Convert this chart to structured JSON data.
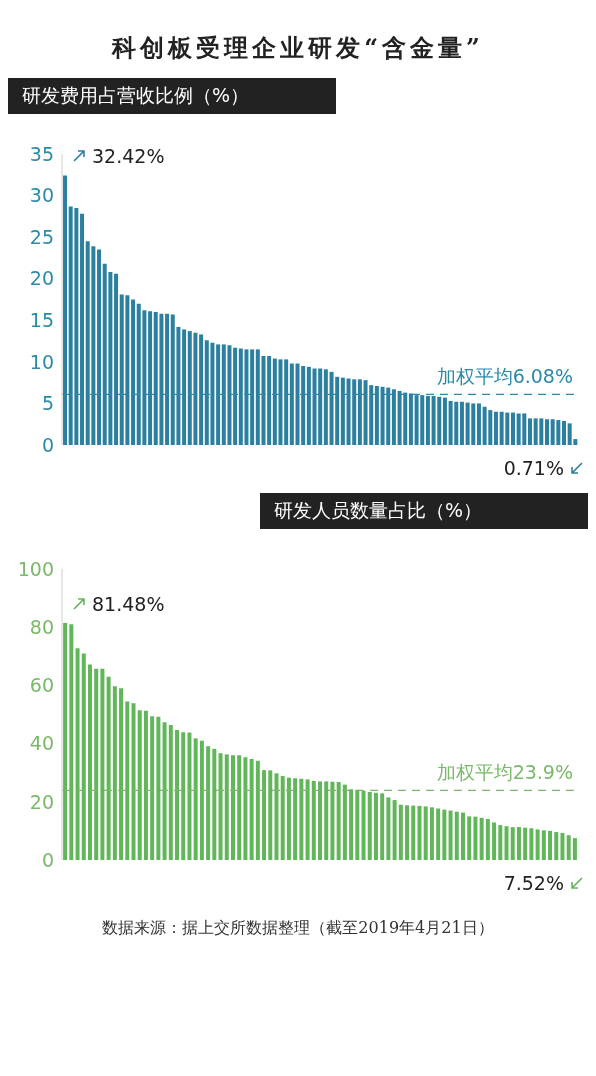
{
  "chart_data": [
    {
      "type": "bar",
      "title": "科创板受理企业研发“含金量”",
      "subtitle": "研发费用占营收比例（%）",
      "color": "#2b7f9f",
      "categories": [
        null,
        null,
        null,
        null,
        null,
        null,
        null,
        null,
        null,
        null,
        null,
        null,
        null,
        null,
        null,
        null,
        null,
        null,
        null,
        null,
        null,
        null,
        null,
        null,
        null,
        null,
        null,
        null,
        null,
        null,
        null,
        null,
        null,
        null,
        null,
        null,
        null,
        null,
        null,
        null,
        null,
        null,
        null,
        null,
        null,
        null,
        null,
        null,
        null,
        null,
        null,
        null,
        null,
        null,
        null,
        null,
        null,
        null,
        null,
        null,
        null,
        null,
        null,
        null,
        null,
        null,
        null,
        null,
        null,
        null,
        null,
        null,
        null,
        null,
        null,
        null,
        null,
        null,
        null,
        null,
        null,
        null,
        null,
        null,
        null,
        null,
        null,
        null,
        null,
        null,
        null
      ],
      "values": [
        32.42,
        28.7,
        28.5,
        27.8,
        24.5,
        23.9,
        23.5,
        21.8,
        20.8,
        20.6,
        18.1,
        18.0,
        17.5,
        17.0,
        16.2,
        16.1,
        16.0,
        15.8,
        15.8,
        15.7,
        14.2,
        13.9,
        13.7,
        13.5,
        13.3,
        12.6,
        12.3,
        12.1,
        12.1,
        12.0,
        11.7,
        11.6,
        11.5,
        11.5,
        11.5,
        10.7,
        10.7,
        10.4,
        10.3,
        10.3,
        9.8,
        9.8,
        9.5,
        9.4,
        9.2,
        9.2,
        9.1,
        8.8,
        8.2,
        8.1,
        8.0,
        7.9,
        7.9,
        7.8,
        7.2,
        7.1,
        7.0,
        6.9,
        6.7,
        6.5,
        6.3,
        6.2,
        6.0,
        6.0,
        5.9,
        5.9,
        5.8,
        5.7,
        5.3,
        5.2,
        5.2,
        5.1,
        5.0,
        5.0,
        4.6,
        4.2,
        4.0,
        4.0,
        3.9,
        3.9,
        3.8,
        3.8,
        3.2,
        3.2,
        3.2,
        3.1,
        3.1,
        3.0,
        2.9,
        2.6,
        0.71
      ],
      "ylim": [
        0,
        35
      ],
      "yticks": [
        0,
        5,
        10,
        15,
        20,
        25,
        30,
        35
      ],
      "grid": false,
      "tick_labels": "y",
      "ref_lines": [
        {
          "axis": "y",
          "value": 6.08,
          "label": "加权平均6.08%",
          "color": "#2b8aa8",
          "line_style": "dashed"
        }
      ],
      "annotations": [
        "32.42%",
        "0.71%"
      ]
    },
    {
      "type": "bar",
      "subtitle": "研发人员数量占比（%）",
      "color": "#62b65a",
      "categories": [
        null,
        null,
        null,
        null,
        null,
        null,
        null,
        null,
        null,
        null,
        null,
        null,
        null,
        null,
        null,
        null,
        null,
        null,
        null,
        null,
        null,
        null,
        null,
        null,
        null,
        null,
        null,
        null,
        null,
        null,
        null,
        null,
        null,
        null,
        null,
        null,
        null,
        null,
        null,
        null,
        null,
        null,
        null,
        null,
        null,
        null,
        null,
        null,
        null,
        null,
        null,
        null,
        null,
        null,
        null,
        null,
        null,
        null,
        null,
        null,
        null,
        null,
        null,
        null,
        null,
        null,
        null,
        null,
        null,
        null,
        null,
        null,
        null,
        null,
        null,
        null,
        null,
        null,
        null,
        null,
        null,
        null,
        null
      ],
      "values": [
        81.48,
        81.0,
        72.8,
        71.0,
        67.2,
        65.7,
        65.7,
        63.0,
        59.7,
        59.0,
        54.5,
        53.9,
        51.5,
        51.3,
        49.4,
        49.2,
        47.3,
        46.4,
        44.7,
        43.9,
        43.8,
        41.8,
        41.0,
        39.1,
        38.2,
        36.7,
        36.3,
        36.0,
        36.0,
        35.3,
        34.7,
        34.1,
        30.9,
        30.8,
        29.8,
        28.9,
        28.3,
        28.1,
        27.9,
        27.7,
        27.2,
        27.0,
        27.0,
        26.9,
        26.8,
        25.9,
        24.3,
        24.1,
        23.8,
        23.4,
        23.1,
        22.9,
        21.5,
        20.6,
        19.0,
        18.8,
        18.7,
        18.6,
        18.4,
        18.1,
        17.7,
        17.3,
        17.0,
        16.6,
        16.3,
        15.0,
        14.9,
        14.5,
        14.1,
        12.9,
        12.0,
        11.6,
        11.3,
        11.3,
        11.1,
        10.9,
        10.5,
        10.2,
        10.0,
        9.6,
        9.3,
        8.5,
        7.52
      ],
      "ylim": [
        0,
        100
      ],
      "yticks": [
        0,
        20,
        40,
        60,
        80,
        100
      ],
      "grid": false,
      "tick_labels": "y",
      "ref_lines": [
        {
          "axis": "y",
          "value": 23.9,
          "label": "加权平均23.9%",
          "color": "#7ab86a",
          "line_style": "dashed"
        }
      ],
      "annotations": [
        "81.48%",
        "7.52%",
        "数据来源：据上交所数据整理（截至2019年4月21日）"
      ]
    }
  ]
}
